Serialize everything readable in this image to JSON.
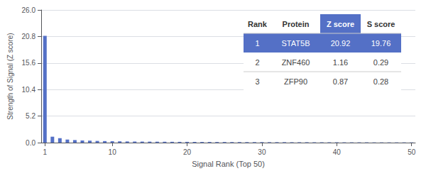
{
  "chart_data": {
    "type": "bar",
    "xlabel": "Signal Rank (Top 50)",
    "ylabel": "Strength of Signal (Z score)",
    "x": [
      1,
      2,
      3,
      4,
      5,
      6,
      7,
      8,
      9,
      10,
      11,
      12,
      13,
      14,
      15,
      16,
      17,
      18,
      19,
      20,
      21,
      22,
      23,
      24,
      25,
      26,
      27,
      28,
      29,
      30,
      31,
      32,
      33,
      34,
      35,
      36,
      37,
      38,
      39,
      40,
      41,
      42,
      43,
      44,
      45,
      46,
      47,
      48,
      49,
      50
    ],
    "values": [
      20.92,
      1.16,
      0.87,
      0.6,
      0.5,
      0.42,
      0.37,
      0.33,
      0.3,
      0.27,
      0.25,
      0.23,
      0.21,
      0.2,
      0.19,
      0.18,
      0.17,
      0.16,
      0.15,
      0.15,
      0.14,
      0.13,
      0.13,
      0.12,
      0.12,
      0.11,
      0.11,
      0.1,
      0.1,
      0.1,
      0.09,
      0.09,
      0.09,
      0.08,
      0.08,
      0.08,
      0.07,
      0.07,
      0.07,
      0.07,
      0.06,
      0.06,
      0.06,
      0.06,
      0.05,
      0.05,
      0.05,
      0.05,
      0.05,
      0.05
    ],
    "xlim": [
      0.5,
      50.5
    ],
    "xticks": [
      1,
      10,
      20,
      30,
      40,
      50
    ],
    "ylim": [
      0,
      26
    ],
    "yticks": [
      {
        "value": 0,
        "label": "0.0"
      },
      5.2,
      10.4,
      15.6,
      20.8,
      {
        "value": 26,
        "label": "26.0"
      }
    ],
    "grid": true,
    "table": {
      "headers": [
        "Rank",
        "Protein",
        "Z score",
        "S score"
      ],
      "rows": [
        [
          "1",
          "STAT5B",
          "20.92",
          "19.76"
        ],
        [
          "2",
          "ZNF460",
          "1.16",
          "0.29"
        ],
        [
          "3",
          "ZFP90",
          "0.87",
          "0.28"
        ]
      ]
    }
  }
}
